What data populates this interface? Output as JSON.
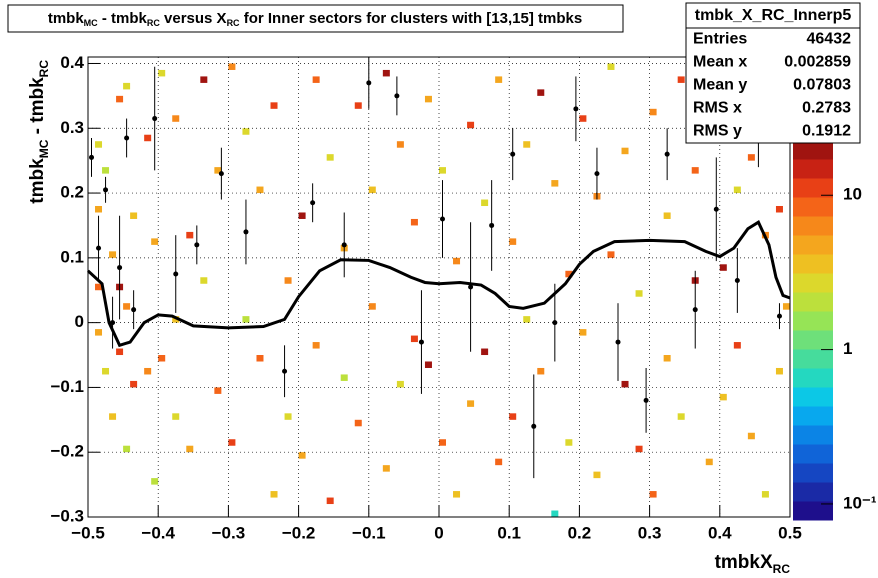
{
  "chart_data": {
    "type": "heatmap",
    "title_parts": [
      "tmbk",
      "MC",
      " - tmbk",
      "RC",
      " versus X",
      "RC",
      " for Inner sectors for clusters with [13,15] tmbks"
    ],
    "x_label_parts": [
      "tmbkX",
      "RC"
    ],
    "y_label_parts": [
      "tmbk",
      "MC",
      " - tmbk",
      "RC"
    ],
    "xlim": [
      -0.5,
      0.5
    ],
    "ylim": [
      -0.3,
      0.41
    ],
    "xticks": [
      {
        "value": -0.5,
        "label": "−0.5"
      },
      {
        "value": -0.4,
        "label": "−0.4"
      },
      {
        "value": -0.3,
        "label": "−0.3"
      },
      {
        "value": -0.2,
        "label": "−0.2"
      },
      {
        "value": -0.1,
        "label": "−0.1"
      },
      0,
      0.1,
      0.2,
      0.3,
      0.4,
      0.5
    ],
    "yticks": [
      {
        "value": -0.3,
        "label": "−0.3"
      },
      {
        "value": -0.2,
        "label": "−0.2"
      },
      {
        "value": -0.1,
        "label": "−0.1"
      },
      0,
      0.1,
      0.2,
      0.3,
      0.4
    ],
    "zlim": [
      0.0787,
      22.8
    ],
    "zticks": [
      {
        "value": 0.1,
        "label": "10⁻¹"
      },
      1,
      10
    ],
    "log_z": true,
    "grid": true,
    "colorscale": [
      "#1e0f8c",
      "#1a2aa6",
      "#1546c2",
      "#1064d8",
      "#0b84e6",
      "#08a8ee",
      "#0cc8e6",
      "#24d8c0",
      "#46dc9c",
      "#6ee07a",
      "#96e456",
      "#bce03c",
      "#dcd82c",
      "#eec022",
      "#f4a61e",
      "#f6881a",
      "#f46418",
      "#e84016",
      "#c82214",
      "#a01410"
    ],
    "cells": {
      "x": [
        -0.49,
        -0.49,
        -0.49,
        -0.49,
        -0.48,
        -0.48,
        -0.47,
        -0.47,
        -0.46,
        -0.46,
        -0.46,
        -0.45,
        -0.45,
        -0.45,
        -0.44,
        -0.44,
        -0.42,
        -0.42,
        -0.41,
        -0.41,
        -0.4,
        -0.4,
        -0.38,
        -0.38,
        -0.38,
        -0.36,
        -0.36,
        -0.34,
        -0.34,
        -0.32,
        -0.32,
        -0.3,
        -0.3,
        -0.28,
        -0.28,
        -0.26,
        -0.26,
        -0.24,
        -0.24,
        -0.22,
        -0.22,
        -0.2,
        -0.2,
        -0.18,
        -0.18,
        -0.16,
        -0.16,
        -0.14,
        -0.14,
        -0.12,
        -0.12,
        -0.1,
        -0.1,
        -0.08,
        -0.08,
        -0.06,
        -0.06,
        -0.04,
        -0.04,
        -0.02,
        -0.02,
        0.0,
        0.0,
        0.02,
        0.02,
        0.04,
        0.04,
        0.06,
        0.06,
        0.08,
        0.08,
        0.1,
        0.1,
        0.12,
        0.12,
        0.14,
        0.14,
        0.16,
        0.16,
        0.18,
        0.18,
        0.2,
        0.2,
        0.22,
        0.22,
        0.24,
        0.24,
        0.26,
        0.26,
        0.28,
        0.28,
        0.3,
        0.3,
        0.32,
        0.32,
        0.34,
        0.34,
        0.36,
        0.36,
        0.38,
        0.38,
        0.4,
        0.4,
        0.42,
        0.42,
        0.44,
        0.44,
        0.46,
        0.46,
        0.48,
        0.48,
        0.49
      ],
      "y": [
        0.27,
        0.17,
        0.05,
        -0.02,
        0.23,
        -0.08,
        0.1,
        -0.15,
        0.34,
        0.05,
        -0.05,
        0.36,
        0.02,
        -0.2,
        0.16,
        -0.1,
        0.28,
        -0.08,
        0.12,
        -0.25,
        0.38,
        -0.06,
        0.31,
        0.0,
        -0.15,
        0.13,
        -0.2,
        0.37,
        0.06,
        -0.11,
        0.23,
        0.39,
        -0.19,
        0.29,
        0.0,
        0.2,
        -0.06,
        -0.27,
        0.33,
        0.06,
        -0.15,
        0.16,
        -0.21,
        0.37,
        -0.04,
        0.25,
        -0.28,
        0.11,
        -0.09,
        0.33,
        -0.16,
        0.2,
        0.02,
        0.38,
        -0.23,
        0.27,
        -0.1,
        0.15,
        -0.03,
        -0.07,
        0.34,
        0.23,
        -0.19,
        0.09,
        -0.27,
        0.3,
        -0.13,
        0.18,
        -0.05,
        0.37,
        -0.22,
        0.12,
        -0.15,
        0.27,
        0.0,
        0.35,
        -0.08,
        -0.3,
        0.21,
        0.07,
        -0.19,
        0.31,
        -0.02,
        0.19,
        -0.24,
        0.39,
        0.1,
        -0.1,
        0.26,
        -0.2,
        0.04,
        0.32,
        -0.27,
        0.16,
        -0.06,
        0.37,
        -0.15,
        0.23,
        0.06,
        -0.22,
        0.3,
        0.08,
        -0.12,
        0.2,
        -0.04,
        0.25,
        -0.18,
        0.13,
        -0.27,
        0.17,
        -0.08,
        0.02
      ],
      "z": [
        3,
        5,
        8,
        5,
        2,
        3,
        5,
        4,
        8,
        20,
        10,
        3,
        6,
        2,
        4,
        10,
        10,
        6,
        5,
        2,
        3,
        8,
        6,
        4,
        3,
        10,
        5,
        20,
        3,
        8,
        5,
        6,
        10,
        3,
        2,
        5,
        8,
        4,
        10,
        6,
        3,
        20,
        5,
        8,
        6,
        3,
        10,
        5,
        2,
        10,
        8,
        4,
        6,
        20,
        5,
        6,
        3,
        8,
        10,
        20,
        5,
        3,
        8,
        6,
        4,
        10,
        5,
        3,
        20,
        5,
        8,
        6,
        10,
        4,
        3,
        20,
        6,
        0.6,
        5,
        8,
        3,
        10,
        5,
        6,
        4,
        3,
        8,
        20,
        5,
        10,
        3,
        6,
        8,
        4,
        5,
        10,
        3,
        8,
        20,
        5,
        6,
        20,
        4,
        3,
        10,
        8,
        5,
        6,
        3,
        10,
        4,
        5
      ]
    },
    "profile": {
      "color": "#000000",
      "x": [
        -0.495,
        -0.485,
        -0.475,
        -0.465,
        -0.455,
        -0.445,
        -0.435,
        -0.405,
        -0.375,
        -0.345,
        -0.31,
        -0.275,
        -0.22,
        -0.18,
        -0.135,
        -0.1,
        -0.06,
        -0.025,
        0.005,
        0.045,
        0.075,
        0.105,
        0.135,
        0.165,
        0.195,
        0.225,
        0.255,
        0.295,
        0.325,
        0.365,
        0.395,
        0.425,
        0.455,
        0.485
      ],
      "y": [
        0.255,
        0.115,
        0.205,
        0.0,
        0.085,
        0.285,
        0.02,
        0.315,
        0.075,
        0.12,
        0.23,
        0.14,
        -0.075,
        0.185,
        0.12,
        0.37,
        0.35,
        -0.03,
        0.16,
        0.055,
        0.15,
        0.26,
        -0.16,
        0.0,
        0.33,
        0.23,
        -0.03,
        -0.12,
        0.26,
        0.02,
        0.175,
        0.065,
        0.3,
        0.01
      ],
      "yerr": [
        0.03,
        0.05,
        0.02,
        0.04,
        0.08,
        0.03,
        0.03,
        0.08,
        0.06,
        0.03,
        0.04,
        0.05,
        0.04,
        0.03,
        0.05,
        0.04,
        0.03,
        0.08,
        0.06,
        0.1,
        0.07,
        0.04,
        0.08,
        0.06,
        0.05,
        0.04,
        0.06,
        0.05,
        0.04,
        0.06,
        0.08,
        0.05,
        0.06,
        0.02
      ]
    },
    "fit": {
      "color": "#000000",
      "x": [
        -0.5,
        -0.48,
        -0.47,
        -0.455,
        -0.44,
        -0.42,
        -0.4,
        -0.38,
        -0.35,
        -0.3,
        -0.25,
        -0.22,
        -0.2,
        -0.17,
        -0.14,
        -0.1,
        -0.07,
        -0.04,
        -0.02,
        0.0,
        0.03,
        0.06,
        0.08,
        0.1,
        0.12,
        0.15,
        0.18,
        0.2,
        0.22,
        0.25,
        0.3,
        0.35,
        0.38,
        0.4,
        0.42,
        0.44,
        0.455,
        0.47,
        0.48,
        0.49,
        0.5
      ],
      "y": [
        0.08,
        0.06,
        0.0,
        -0.035,
        -0.03,
        0.0,
        0.012,
        0.01,
        -0.005,
        -0.008,
        -0.006,
        0.005,
        0.04,
        0.08,
        0.097,
        0.096,
        0.085,
        0.07,
        0.062,
        0.06,
        0.062,
        0.058,
        0.045,
        0.025,
        0.022,
        0.03,
        0.06,
        0.09,
        0.11,
        0.125,
        0.127,
        0.125,
        0.11,
        0.102,
        0.115,
        0.145,
        0.155,
        0.12,
        0.07,
        0.042,
        0.038
      ]
    },
    "stats": {
      "title": "tmbk_X_RC_Innerp5",
      "rows": [
        {
          "name": "Entries",
          "value": 46432
        },
        {
          "name": "Mean x",
          "value": 0.002859
        },
        {
          "name": "Mean y",
          "value": 0.07803
        },
        {
          "name": "RMS x",
          "value": 0.2783
        },
        {
          "name": "RMS y",
          "value": 0.1912
        }
      ]
    }
  }
}
